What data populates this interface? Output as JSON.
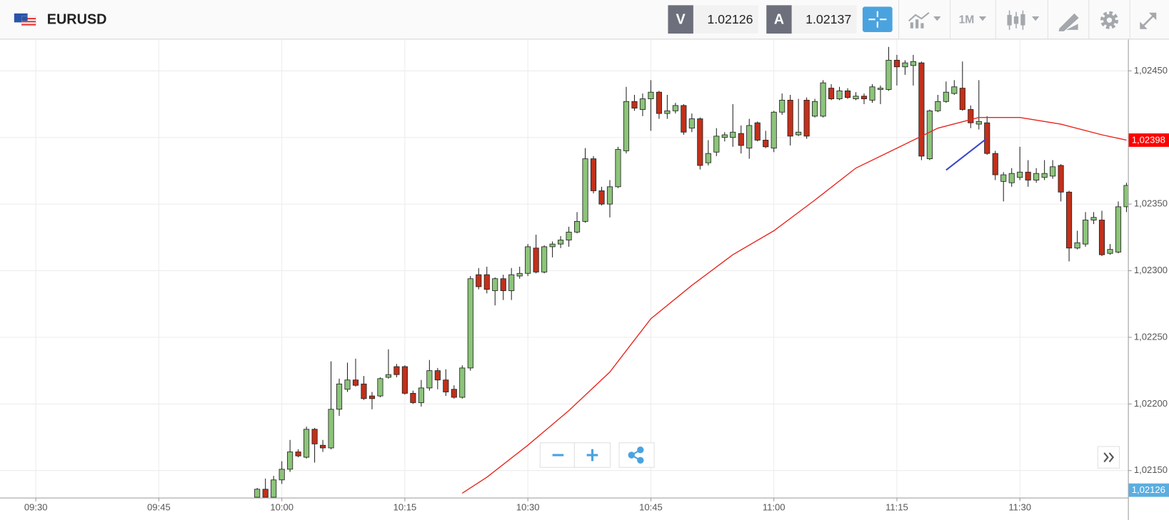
{
  "header": {
    "symbol": "EURUSD",
    "bid_label": "V",
    "bid": "1.02126",
    "ask_label": "A",
    "ask": "1.02137",
    "timeframe": "1M"
  },
  "chart_data": {
    "type": "candlestick",
    "x": [
      "09:57",
      "09:58",
      "09:59",
      "10:00",
      "10:01",
      "10:02",
      "10:03",
      "10:04",
      "10:05",
      "10:06",
      "10:07",
      "10:08",
      "10:09",
      "10:10",
      "10:11",
      "10:12",
      "10:13",
      "10:14",
      "10:15",
      "10:16",
      "10:17",
      "10:18",
      "10:19",
      "10:20",
      "10:21",
      "10:22",
      "10:23",
      "10:24",
      "10:25",
      "10:26",
      "10:27",
      "10:28",
      "10:29",
      "10:30",
      "10:31",
      "10:32",
      "10:33",
      "10:34",
      "10:35",
      "10:36",
      "10:37",
      "10:38",
      "10:39",
      "10:40",
      "10:41",
      "10:42",
      "10:43",
      "10:44",
      "10:45",
      "10:46",
      "10:47",
      "10:48",
      "10:49",
      "10:50",
      "10:51",
      "10:52",
      "10:53",
      "10:54",
      "10:55",
      "10:56",
      "10:57",
      "10:58",
      "10:59",
      "11:00",
      "11:01",
      "11:02",
      "11:03",
      "11:04",
      "11:05",
      "11:06",
      "11:07",
      "11:08",
      "11:09",
      "11:10",
      "11:11",
      "11:12",
      "11:13",
      "11:14",
      "11:15",
      "11:16",
      "11:17",
      "11:18",
      "11:19",
      "11:20",
      "11:21",
      "11:22",
      "11:23",
      "11:24",
      "11:25",
      "11:26",
      "11:27",
      "11:28",
      "11:29",
      "11:30",
      "11:31",
      "11:32",
      "11:33",
      "11:34",
      "11:35",
      "11:36",
      "11:37",
      "11:38",
      "11:39",
      "11:40",
      "11:41",
      "11:42",
      "11:43"
    ],
    "open": [
      1.0213,
      1.02136,
      1.0213,
      1.02143,
      1.02151,
      1.02164,
      1.0216,
      1.02181,
      1.02169,
      1.02167,
      1.02196,
      1.02211,
      1.02218,
      1.02215,
      1.02206,
      1.02206,
      1.0222,
      1.02228,
      1.02228,
      1.02208,
      1.02201,
      1.02212,
      1.02225,
      1.02218,
      1.02211,
      1.02205,
      1.02227,
      1.02297,
      1.02297,
      1.02285,
      1.02294,
      1.02285,
      1.02296,
      1.02298,
      1.02317,
      1.02299,
      1.02318,
      1.0232,
      1.02323,
      1.02329,
      1.02337,
      1.02384,
      1.0236,
      1.0235,
      1.02363,
      1.0239,
      1.02427,
      1.02421,
      1.02429,
      1.02434,
      1.02418,
      1.0242,
      1.02424,
      1.02407,
      1.02414,
      1.02381,
      1.02389,
      1.024,
      1.024,
      1.02403,
      1.02392,
      1.02411,
      1.02398,
      1.02392,
      1.02419,
      1.02428,
      1.02402,
      1.02428,
      1.02416,
      1.02416,
      1.02437,
      1.02429,
      1.02435,
      1.02429,
      1.02431,
      1.02428,
      1.02436,
      1.02436,
      1.02458,
      1.02453,
      1.02454,
      1.02456,
      1.02384,
      1.0242,
      1.02427,
      1.02433,
      1.02437,
      1.02421,
      1.0241,
      1.02411,
      1.02388,
      1.02367,
      1.02366,
      1.0237,
      1.02374,
      1.02368,
      1.0237,
      1.02371,
      1.02379,
      1.02359,
      1.02317,
      1.0232,
      1.02338,
      1.02338,
      1.02313,
      1.02314,
      1.02348
    ],
    "high": [
      1.02137,
      1.02144,
      1.02146,
      1.02157,
      1.02173,
      1.02166,
      1.02183,
      1.02182,
      1.02173,
      1.02232,
      1.02219,
      1.02231,
      1.02234,
      1.02221,
      1.02209,
      1.0222,
      1.02241,
      1.0223,
      1.02229,
      1.0221,
      1.02218,
      1.02233,
      1.02227,
      1.02226,
      1.02214,
      1.02229,
      1.02296,
      1.02302,
      1.02303,
      1.02295,
      1.02297,
      1.02302,
      1.02303,
      1.0232,
      1.02327,
      1.02319,
      1.02322,
      1.02326,
      1.02333,
      1.02344,
      1.02392,
      1.02386,
      1.02363,
      1.02368,
      1.02393,
      1.02438,
      1.02432,
      1.02433,
      1.02443,
      1.02435,
      1.02432,
      1.02426,
      1.02425,
      1.02418,
      1.02415,
      1.02398,
      1.02407,
      1.02404,
      1.02425,
      1.02409,
      1.02414,
      1.02412,
      1.02405,
      1.0242,
      1.02433,
      1.02432,
      1.02429,
      1.0243,
      1.02429,
      1.02443,
      1.0244,
      1.02438,
      1.02437,
      1.02434,
      1.02433,
      1.0244,
      1.02439,
      1.02468,
      1.02462,
      1.02458,
      1.02462,
      1.02457,
      1.02421,
      1.02432,
      1.02442,
      1.02443,
      1.02457,
      1.02424,
      1.02443,
      1.02416,
      1.0239,
      1.02374,
      1.02377,
      1.02393,
      1.02383,
      1.02377,
      1.02383,
      1.02383,
      1.0238,
      1.0236,
      1.0233,
      1.02344,
      1.02344,
      1.02345,
      1.0232,
      1.02352,
      1.02366
    ],
    "low": [
      1.0213,
      1.0213,
      1.0213,
      1.0214,
      1.02149,
      1.0216,
      1.02159,
      1.02156,
      1.02164,
      1.02166,
      1.02191,
      1.02209,
      1.02213,
      1.02203,
      1.02196,
      1.02205,
      1.02219,
      1.0222,
      1.02207,
      1.022,
      1.02198,
      1.0221,
      1.02211,
      1.02206,
      1.02204,
      1.02204,
      1.02225,
      1.02286,
      1.02283,
      1.02274,
      1.02278,
      1.02278,
      1.02294,
      1.02296,
      1.02298,
      1.02298,
      1.0231,
      1.02317,
      1.02318,
      1.02328,
      1.02336,
      1.02358,
      1.02349,
      1.0234,
      1.02362,
      1.02388,
      1.0242,
      1.02416,
      1.02405,
      1.02414,
      1.02414,
      1.02418,
      1.02402,
      1.02404,
      1.02376,
      1.02379,
      1.02386,
      1.02397,
      1.02393,
      1.02388,
      1.02384,
      1.02397,
      1.02392,
      1.02389,
      1.02417,
      1.02394,
      1.02401,
      1.02399,
      1.02415,
      1.02415,
      1.02428,
      1.02428,
      1.02429,
      1.02428,
      1.02425,
      1.02426,
      1.02425,
      1.02435,
      1.02439,
      1.02447,
      1.02439,
      1.02383,
      1.02383,
      1.02419,
      1.02426,
      1.02432,
      1.0242,
      1.02407,
      1.02406,
      1.02387,
      1.02368,
      1.02352,
      1.02363,
      1.02368,
      1.02363,
      1.02366,
      1.02368,
      1.02369,
      1.02352,
      1.02307,
      1.02316,
      1.02318,
      1.02335,
      1.02311,
      1.02312,
      1.02313,
      1.02344
    ],
    "close": [
      1.02136,
      1.0213,
      1.02143,
      1.02151,
      1.02164,
      1.02161,
      1.02181,
      1.0217,
      1.02167,
      1.02196,
      1.02215,
      1.02218,
      1.02214,
      1.02204,
      1.02204,
      1.02219,
      1.02222,
      1.02222,
      1.02208,
      1.02201,
      1.02212,
      1.02225,
      1.02218,
      1.02209,
      1.02205,
      1.02227,
      1.02294,
      1.02288,
      1.02286,
      1.02294,
      1.02285,
      1.02297,
      1.02298,
      1.02318,
      1.02299,
      1.02318,
      1.0232,
      1.02323,
      1.02329,
      1.02337,
      1.02384,
      1.0236,
      1.0235,
      1.02363,
      1.02391,
      1.02427,
      1.02422,
      1.02429,
      1.02434,
      1.02418,
      1.0242,
      1.02424,
      1.02404,
      1.02414,
      1.02379,
      1.02388,
      1.02401,
      1.02402,
      1.02404,
      1.02394,
      1.02409,
      1.02398,
      1.02393,
      1.02419,
      1.02428,
      1.02401,
      1.02404,
      1.02401,
      1.02427,
      1.02441,
      1.02429,
      1.02435,
      1.0243,
      1.02431,
      1.02429,
      1.02438,
      1.02437,
      1.02458,
      1.02453,
      1.02456,
      1.02457,
      1.02386,
      1.0242,
      1.02427,
      1.02434,
      1.02438,
      1.02421,
      1.02411,
      1.02412,
      1.02388,
      1.02372,
      1.02372,
      1.02373,
      1.02374,
      1.02368,
      1.02373,
      1.02373,
      1.02378,
      1.02359,
      1.02317,
      1.02321,
      1.02338,
      1.0234,
      1.02312,
      1.02316,
      1.02348,
      1.02364
    ],
    "up_color": "#8cc47a",
    "down_color": "#c2301a",
    "overlay": {
      "type": "line",
      "color": "#e8241c",
      "x": [
        "10:22",
        "10:25",
        "10:30",
        "10:35",
        "10:40",
        "10:45",
        "10:50",
        "10:55",
        "11:00",
        "11:05",
        "11:10",
        "11:15",
        "11:20",
        "11:25",
        "11:30",
        "11:35",
        "11:40",
        "11:43"
      ],
      "values": [
        1.02133,
        1.02145,
        1.02169,
        1.02195,
        1.02224,
        1.02264,
        1.02289,
        1.02312,
        1.0233,
        1.02353,
        1.02377,
        1.02392,
        1.02407,
        1.02415,
        1.02415,
        1.0241,
        1.02402,
        1.02398
      ]
    },
    "price_markers": [
      {
        "value": 1.02398,
        "label": "1,02398",
        "color": "#ff0000"
      },
      {
        "value": 1.02126,
        "label": "1,02126",
        "color": "#5aaee0"
      }
    ],
    "ylim": [
      1.021297,
      1.024735
    ],
    "yticks": [
      {
        "value": 1.0215,
        "label": "1,02150"
      },
      {
        "value": 1.022,
        "label": "1,02200"
      },
      {
        "value": 1.0225,
        "label": "1,02250"
      },
      {
        "value": 1.023,
        "label": "1,02300"
      },
      {
        "value": 1.0235,
        "label": "1,02350"
      },
      {
        "value": 1.024,
        "label": "1,02400"
      },
      {
        "value": 1.0245,
        "label": "1,02450"
      }
    ],
    "xlim": [
      "09:25:38",
      "11:43:11"
    ],
    "xticks": [
      "09:30",
      "09:45",
      "10:00",
      "10:15",
      "10:30",
      "10:45",
      "11:00",
      "11:15",
      "11:30"
    ],
    "grid": true
  }
}
